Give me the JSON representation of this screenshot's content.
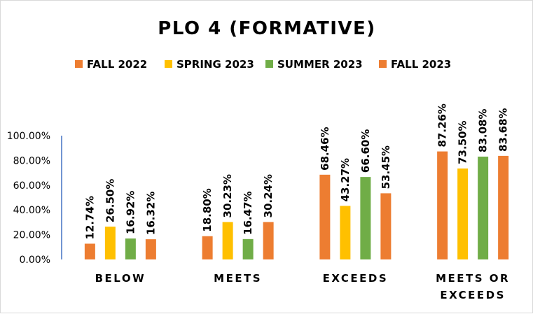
{
  "chart_data": {
    "type": "bar",
    "title": "PLO 4 (FORMATIVE)",
    "categories": [
      [
        "BELOW"
      ],
      [
        "MEETS"
      ],
      [
        "EXCEEDS"
      ],
      [
        "MEETS OR",
        "EXCEEDS"
      ]
    ],
    "series": [
      {
        "name": "FALL 2022",
        "color": "#ED7D31",
        "values": [
          12.74,
          18.8,
          68.46,
          87.26
        ],
        "labels": [
          "12.74%",
          "18.80%",
          "68.46%",
          "87.26%"
        ]
      },
      {
        "name": "SPRING 2023",
        "color": "#FFC000",
        "values": [
          26.5,
          30.23,
          43.27,
          73.5
        ],
        "labels": [
          "26.50%",
          "30.23%",
          "43.27%",
          "73.50%"
        ]
      },
      {
        "name": "SUMMER 2023",
        "color": "#70AD47",
        "values": [
          16.92,
          16.47,
          66.6,
          83.08
        ],
        "labels": [
          "16.92%",
          "16.47%",
          "66.60%",
          "83.08%"
        ]
      },
      {
        "name": "FALL 2023",
        "color": "#ED7D31",
        "values": [
          16.32,
          30.24,
          53.45,
          83.68
        ],
        "labels": [
          "16.32%",
          "30.24%",
          "53.45%",
          "83.68%"
        ]
      }
    ],
    "yticks": [
      0,
      20,
      40,
      60,
      80,
      100
    ],
    "ytick_labels": [
      "0.00%",
      "20.00%",
      "40.00%",
      "60.00%",
      "80.00%",
      "100.00%"
    ],
    "ylim": [
      0,
      100
    ],
    "xlabel": "",
    "ylabel": "",
    "grid": false,
    "legend_position": "top"
  }
}
